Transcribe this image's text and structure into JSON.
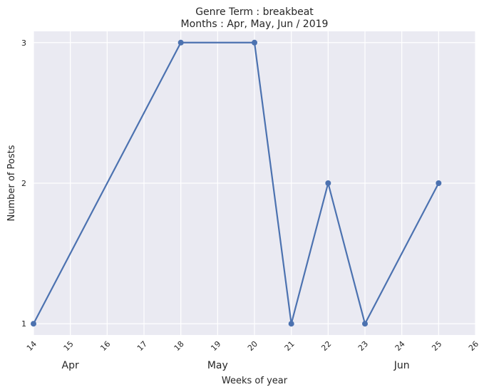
{
  "chart_data": {
    "type": "line",
    "title": "Genre Term : breakbeat",
    "subtitle": "Months : Apr, May, Jun / 2019",
    "xlabel": "Weeks of year",
    "ylabel": "Number of Posts",
    "x": [
      14,
      18,
      20,
      21,
      22,
      23,
      25
    ],
    "series": [
      {
        "values": [
          1,
          3,
          3,
          1,
          2,
          1,
          2
        ]
      }
    ],
    "xlim": [
      14,
      26
    ],
    "ylim": [
      0.92,
      3.08
    ],
    "xticks": [
      "14",
      "15",
      "16",
      "17",
      "18",
      "19",
      "20",
      "21",
      "22",
      "23",
      "24",
      "25",
      "26"
    ],
    "yticks": [
      "1",
      "2",
      "3"
    ],
    "month_labels": [
      {
        "label": "Apr",
        "week": 15
      },
      {
        "label": "May",
        "week": 19
      },
      {
        "label": "Jun",
        "week": 24
      }
    ],
    "grid": true,
    "line_color": "#4c72b0",
    "background_color": "#eaeaf2",
    "grid_color": "#ffffff"
  }
}
